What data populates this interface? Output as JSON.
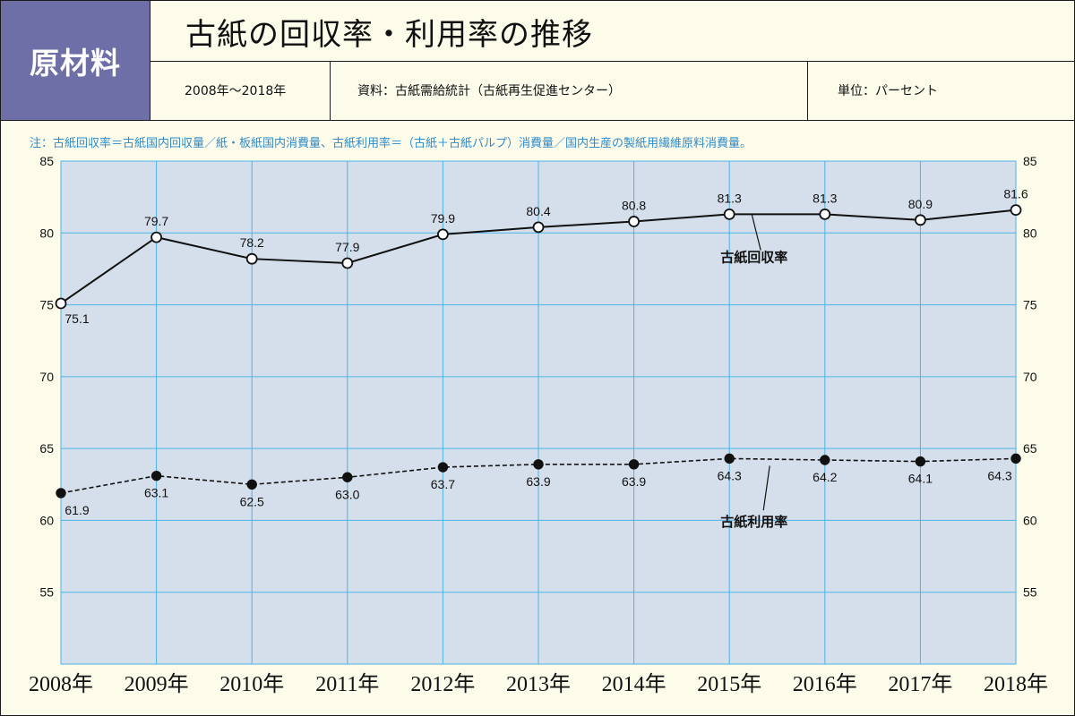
{
  "header": {
    "badge": "原材料",
    "title": "古紙の回収率・利用率の推移",
    "period": "2008年～2018年",
    "source": "資料：古紙需給統計（古紙再生促進センター）",
    "unit": "単位：パーセント"
  },
  "note": "注：古紙回収率＝古紙国内回収量／紙・板紙国内消費量、古紙利用率＝（古紙＋古紙パルプ）消費量／国内生産の製紙用繊維原料消費量。",
  "colors": {
    "badge": "#6f6fa8",
    "plot_bg": "#d5dfeb",
    "grid": "#4db3e6",
    "note": "#2f8bc9",
    "page_bg": "#fdfbea"
  },
  "chart_data": {
    "type": "line",
    "categories": [
      "2008年",
      "2009年",
      "2010年",
      "2011年",
      "2012年",
      "2013年",
      "2014年",
      "2015年",
      "2016年",
      "2017年",
      "2018年"
    ],
    "ylim": [
      50,
      85
    ],
    "yticks": [
      55,
      60,
      65,
      70,
      75,
      80,
      85
    ],
    "grid": true,
    "secondary_y_axis": true,
    "series": [
      {
        "name": "古紙回収率",
        "style": "solid line, open circle markers",
        "values": [
          75.1,
          79.7,
          78.2,
          77.9,
          79.9,
          80.4,
          80.8,
          81.3,
          81.3,
          80.9,
          81.6
        ],
        "labels": [
          "75.1",
          "79.7",
          "78.2",
          "77.9",
          "79.9",
          "80.4",
          "80.8",
          "81.3",
          "81.3",
          "80.9",
          "81.6"
        ]
      },
      {
        "name": "古紙利用率",
        "style": "dashed line, filled circle markers",
        "values": [
          61.9,
          63.1,
          62.5,
          63.0,
          63.7,
          63.9,
          63.9,
          64.3,
          64.2,
          64.1,
          64.3
        ],
        "labels": [
          "61.9",
          "63.1",
          "62.5",
          "63.0",
          "63.7",
          "63.9",
          "63.9",
          "64.3",
          "64.2",
          "64.1",
          "64.3"
        ]
      }
    ]
  }
}
